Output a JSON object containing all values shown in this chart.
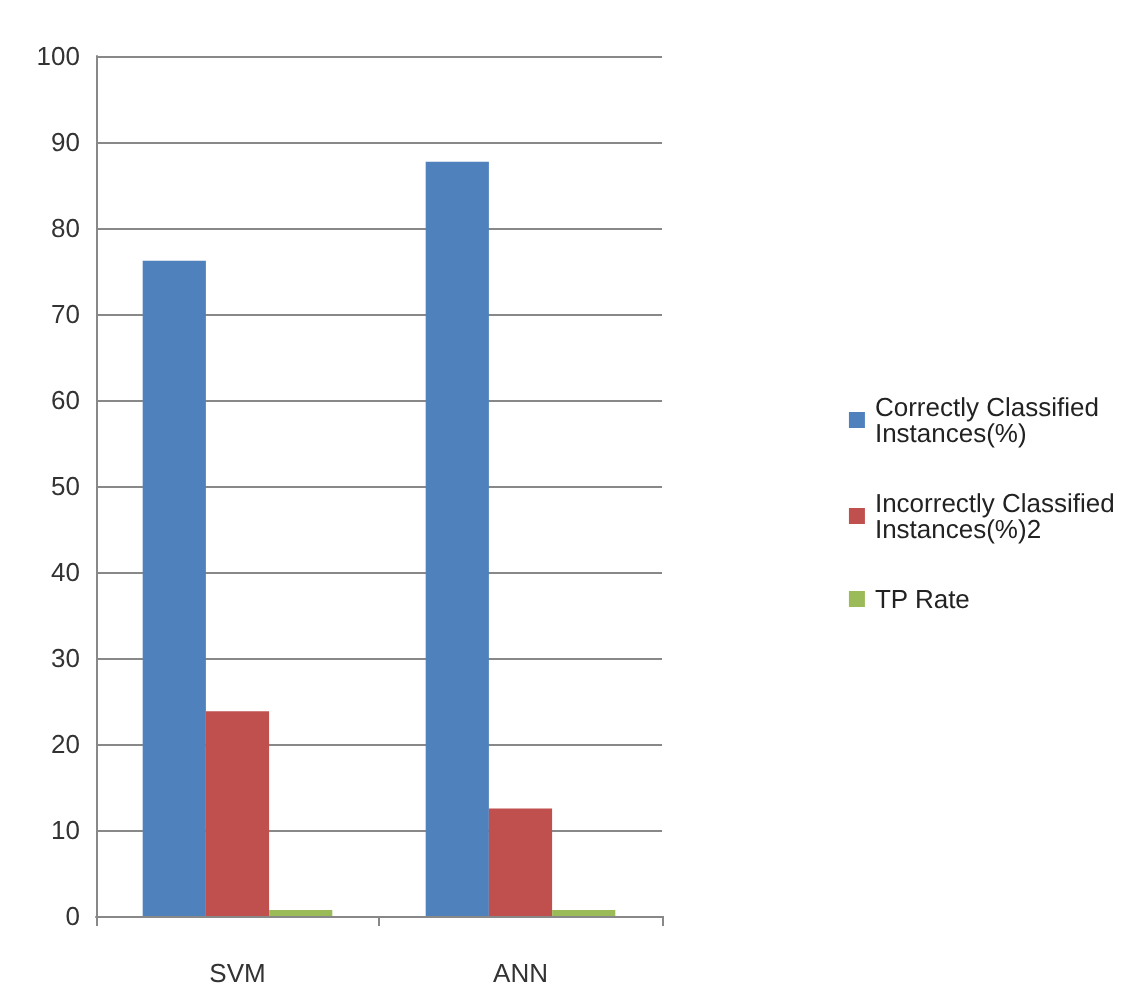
{
  "chart_data": {
    "type": "bar",
    "categories": [
      "SVM",
      "ANN"
    ],
    "series": [
      {
        "name": "Correctly Classified Instances(%)",
        "color": "#4f81bd",
        "values": [
          76.2,
          87.7
        ]
      },
      {
        "name": "Incorrectly Classified Instances(%)2",
        "color": "#c0504d",
        "values": [
          23.8,
          12.5
        ]
      },
      {
        "name": "TP Rate",
        "color": "#9bbb59",
        "values": [
          0.7,
          0.7
        ]
      }
    ],
    "ylim": [
      0,
      100
    ],
    "yticks": [
      0,
      10,
      20,
      30,
      40,
      50,
      60,
      70,
      80,
      90,
      100
    ],
    "grid": "y",
    "legend": "right"
  }
}
